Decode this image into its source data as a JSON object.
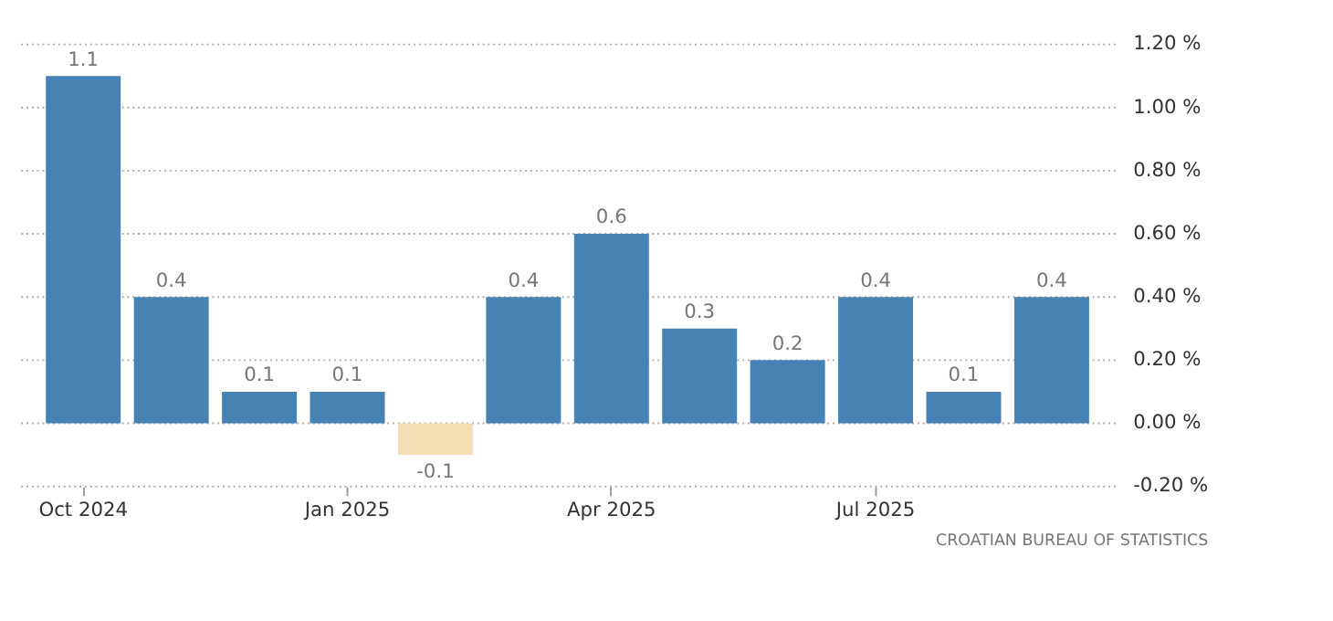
{
  "chart_data": {
    "type": "bar",
    "categories": [
      "Oct 2024",
      null,
      null,
      "Jan 2025",
      null,
      null,
      "Apr 2025",
      null,
      null,
      "Jul 2025",
      null,
      null
    ],
    "values": [
      1.1,
      0.4,
      0.1,
      0.1,
      -0.1,
      0.4,
      0.6,
      0.3,
      0.2,
      0.4,
      0.1,
      0.4
    ],
    "colors": [
      "#4682b4",
      "#4682b4",
      "#4682b4",
      "#4682b4",
      "#f5deb3",
      "#4682b4",
      "#4682b4",
      "#4682b4",
      "#4682b4",
      "#4682b4",
      "#4682b4",
      "#4682b4"
    ],
    "ylim": [
      -0.2,
      1.2
    ],
    "yticks": [
      {
        "value": -0.2,
        "label": "-0.20 %"
      },
      {
        "value": 0,
        "label": "0.00 %"
      },
      {
        "value": 0.2,
        "label": "0.20 %"
      },
      {
        "value": 0.4,
        "label": "0.40 %"
      },
      {
        "value": 0.6,
        "label": "0.60 %"
      },
      {
        "value": 0.8,
        "label": "0.80 %"
      },
      {
        "value": 1.0,
        "label": "1.00 %"
      },
      {
        "value": 1.2,
        "label": "1.20 %"
      }
    ],
    "grid": "y",
    "data_labels": true,
    "annotations": [
      "CROATIAN BUREAU OF STATISTICS"
    ]
  }
}
